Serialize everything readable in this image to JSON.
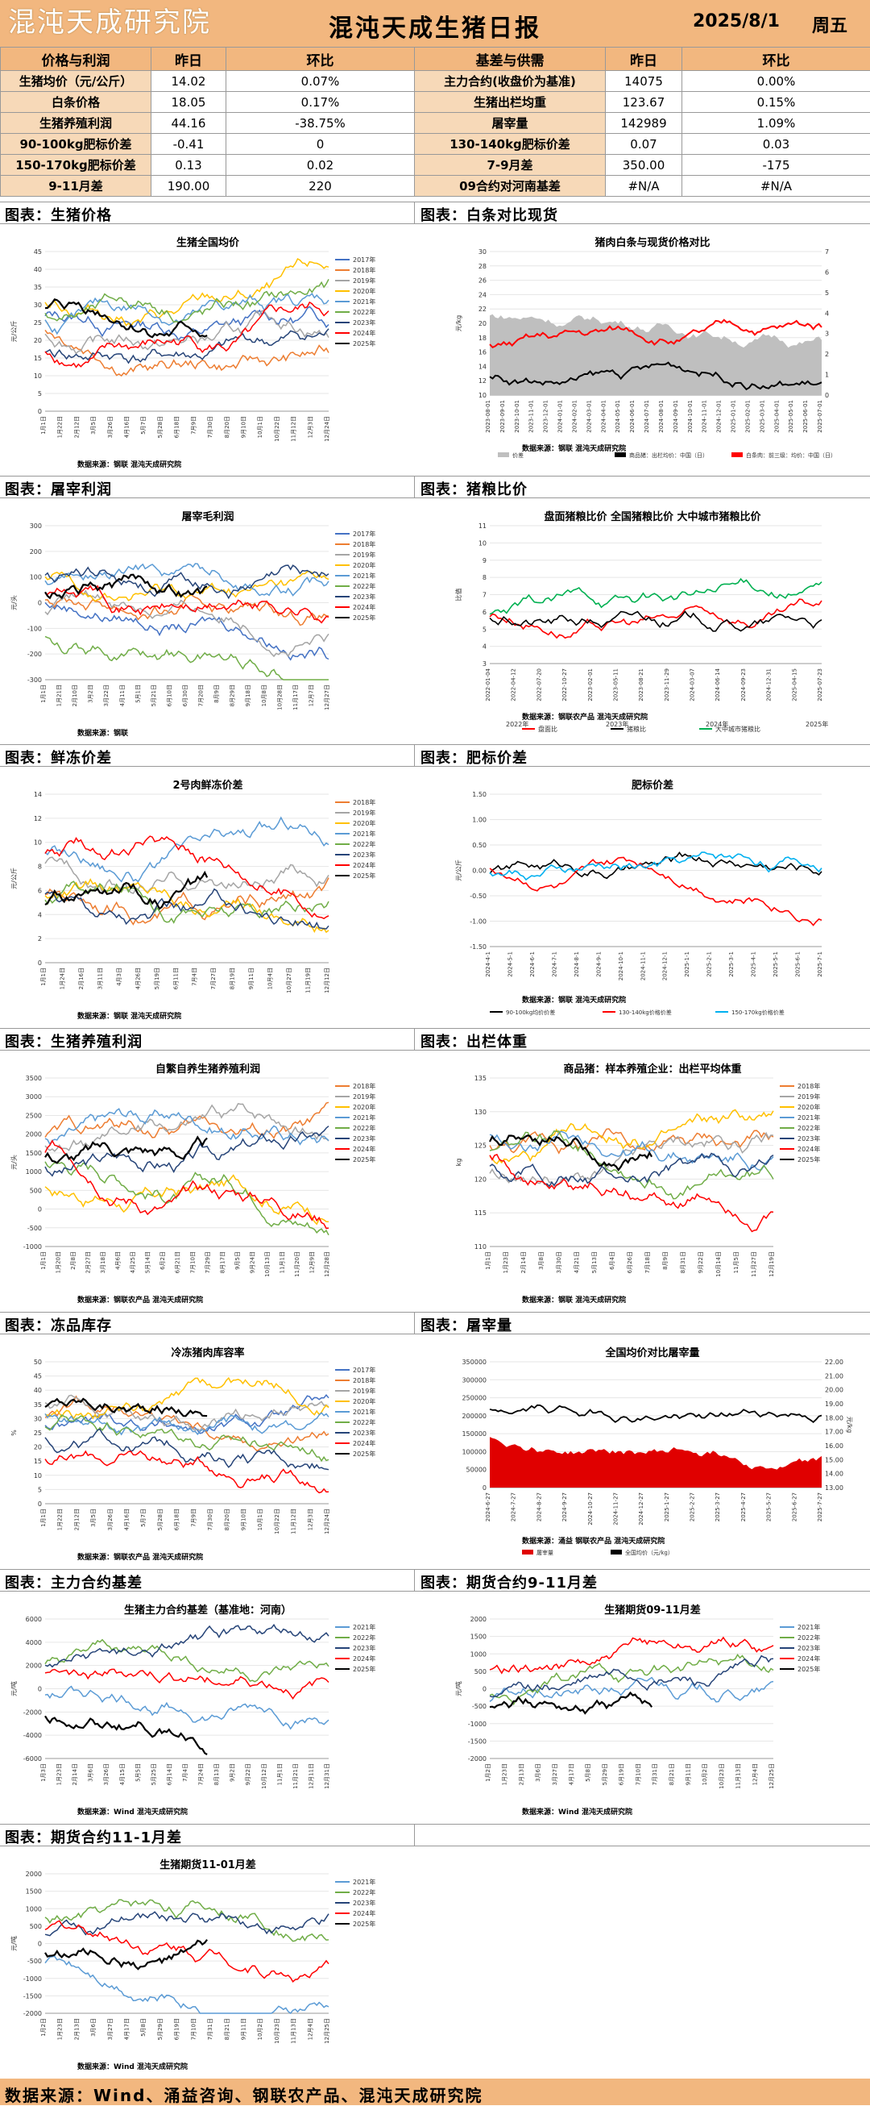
{
  "header": {
    "logo_text": "混沌天成研究院",
    "title": "混沌天成生猪日报",
    "date": "2025/8/1",
    "weekday": "周五"
  },
  "kpi_table": {
    "head": [
      "价格与利润",
      "昨日",
      "环比",
      "基差与供需",
      "昨日",
      "环比"
    ],
    "rows": [
      [
        "生猪均价（元/公斤）",
        "14.02",
        "0.07%",
        "主力合约(收盘价为基准)",
        "14075",
        "0.00%"
      ],
      [
        "白条价格",
        "18.05",
        "0.17%",
        "生猪出栏均重",
        "123.67",
        "0.15%"
      ],
      [
        "生猪养殖利润",
        "44.16",
        "-38.75%",
        "屠宰量",
        "142989",
        "1.09%"
      ],
      [
        "90-100kg肥标价差",
        "-0.41",
        "0",
        "130-140kg肥标价差",
        "0.07",
        "0.03"
      ],
      [
        "150-170kg肥标价差",
        "0.13",
        "0.02",
        "7-9月差",
        "350.00",
        "-175"
      ],
      [
        "9-11月差",
        "190.00",
        "220",
        "09合约对河南基差",
        "#N/A",
        "#N/A"
      ]
    ]
  },
  "sections": [
    {
      "left": "图表：生猪价格",
      "right": "图表：白条对比现货"
    },
    {
      "left": "图表：屠宰利润",
      "right": "图表：猪粮比价"
    },
    {
      "left": "图表：鲜冻价差",
      "right": "图表：肥标价差"
    },
    {
      "left": "图表：生猪养殖利润",
      "right": "图表：出栏体重"
    },
    {
      "left": "图表：冻品库存",
      "right": "图表：屠宰量"
    },
    {
      "left": "图表：主力合约基差",
      "right": "图表：期货合约9-11月差"
    },
    {
      "left": "图表：期货合约11-1月差",
      "right": ""
    }
  ],
  "footer": "数据来源：Wind、涌益咨询、钢联农产品、混沌天成研究院",
  "colors": {
    "header_bg": "#f2b77f",
    "label_bg": "#f7d9b8",
    "s2017": "#4472c4",
    "s2018": "#ed7d31",
    "s2019": "#a5a5a5",
    "s2020": "#ffc000",
    "s2021": "#5b9bd5",
    "s2022": "#70ad47",
    "s2023": "#264478",
    "s2024": "#ff0000",
    "s2025": "#000000"
  },
  "charts": {
    "c1": {
      "title": "生猪全国均价",
      "ylabel": "元/公斤",
      "yticks": [
        "45",
        "40",
        "35",
        "30",
        "25",
        "20",
        "15",
        "10",
        "5",
        "0"
      ],
      "xticks": [
        "1月1日",
        "1月22日",
        "2月12日",
        "3月5日",
        "3月26日",
        "4月16日",
        "5月7日",
        "5月28日",
        "6月18日",
        "7月9日",
        "7月30日",
        "8月20日",
        "9月10日",
        "10月1日",
        "10月22日",
        "11月12日",
        "12月3日",
        "12月24日"
      ],
      "legend": [
        "2017年",
        "2018年",
        "2019年",
        "2020年",
        "2021年",
        "2022年",
        "2023年",
        "2024年",
        "2025年"
      ],
      "source": "数据来源：钢联 混沌天成研究院"
    },
    "c2": {
      "title": "猪肉白条与现货价格对比",
      "ylabel": "元/kg",
      "yticks": [
        "30",
        "28",
        "26",
        "24",
        "22",
        "20",
        "18",
        "16",
        "14",
        "12",
        "10"
      ],
      "y2ticks": [
        "7",
        "6",
        "5",
        "4",
        "3",
        "2",
        "1",
        "0"
      ],
      "xticks": [
        "2023-08-01",
        "2023-09-01",
        "2023-10-01",
        "2023-11-01",
        "2023-12-01",
        "2024-01-01",
        "2024-02-01",
        "2024-03-01",
        "2024-04-01",
        "2024-05-01",
        "2024-06-01",
        "2024-07-01",
        "2024-08-01",
        "2024-09-01",
        "2024-10-01",
        "2024-11-01",
        "2024-12-01",
        "2025-01-01",
        "2025-02-01",
        "2025-03-01",
        "2025-04-01",
        "2025-05-01",
        "2025-06-01",
        "2025-07-01"
      ],
      "legend": [
        "价差",
        "商品猪：出栏均价：中国（日）",
        "白条肉：前三级：均价：中国（日）"
      ],
      "source": "数据来源：钢联 混沌天成研究院"
    },
    "c3": {
      "title": "屠宰毛利润",
      "ylabel": "元/头",
      "yticks": [
        "300",
        "200",
        "100",
        "0",
        "-100",
        "-200",
        "-300"
      ],
      "xticks": [
        "1月1日",
        "1月21日",
        "2月10日",
        "3月2日",
        "3月22日",
        "4月11日",
        "5月1日",
        "5月21日",
        "6月10日",
        "6月30日",
        "7月20日",
        "8月9日",
        "8月29日",
        "9月18日",
        "10月8日",
        "10月28日",
        "11月17日",
        "12月7日",
        "12月27日"
      ],
      "legend": [
        "2017年",
        "2018年",
        "2019年",
        "2020年",
        "2021年",
        "2022年",
        "2023年",
        "2024年",
        "2025年"
      ],
      "source": "数据来源：钢联"
    },
    "c4": {
      "title": "盘面猪粮比价 全国猪粮比价 大中城市猪粮比价",
      "ylabel": "比值",
      "yticks": [
        "11",
        "10",
        "9",
        "8",
        "7",
        "6",
        "5",
        "4",
        "3"
      ],
      "xticks": [
        "2022-01-04",
        "2022-04-12",
        "2022-07-20",
        "2022-10-27",
        "2023-02-01",
        "2023-05-11",
        "2023-08-21",
        "2023-11-29",
        "2024-03-07",
        "2024-06-14",
        "2024-09-23",
        "2024-12-31",
        "2025-04-15",
        "2025-07-23"
      ],
      "years": [
        "2022年",
        "2023年",
        "2024年",
        "2025年"
      ],
      "legend": [
        "盘面比",
        "猪粮比",
        "大中城市猪粮比"
      ],
      "source": "数据来源：钢联农产品 混沌天成研究院"
    },
    "c5": {
      "title": "2号肉鲜冻价差",
      "ylabel": "元/公斤",
      "yticks": [
        "14",
        "12",
        "10",
        "8",
        "6",
        "4",
        "2",
        "0"
      ],
      "xticks": [
        "1月1日",
        "1月24日",
        "2月16日",
        "3月11日",
        "4月3日",
        "4月26日",
        "5月19日",
        "6月11日",
        "7月4日",
        "7月27日",
        "8月19日",
        "9月11日",
        "10月4日",
        "10月27日",
        "11月19日",
        "12月12日"
      ],
      "legend": [
        "2018年",
        "2019年",
        "2020年",
        "2021年",
        "2022年",
        "2023年",
        "2024年",
        "2025年"
      ],
      "source": "数据来源：钢联 混沌天成研究院"
    },
    "c6": {
      "title": "肥标价差",
      "ylabel": "元/公斤",
      "yticks": [
        "1.50",
        "1.00",
        "0.50",
        "0.00",
        "-0.50",
        "-1.00",
        "-1.50"
      ],
      "xticks": [
        "2024-4-1",
        "2024-5-1",
        "2024-6-1",
        "2024-7-1",
        "2024-8-1",
        "2024-9-1",
        "2024-10-1",
        "2024-11-1",
        "2024-12-1",
        "2025-1-1",
        "2025-2-1",
        "2025-3-1",
        "2025-4-1",
        "2025-5-1",
        "2025-6-1",
        "2025-7-1"
      ],
      "legend": [
        "90-100kg均价价差",
        "130-140kg价格价差",
        "150-170kg价格价差"
      ],
      "source": "数据来源：钢联 混沌天成研究院"
    },
    "c7": {
      "title": "自繁自养生猪养殖利润",
      "ylabel": "元/头",
      "yticks": [
        "3500",
        "3000",
        "2500",
        "2000",
        "1500",
        "1000",
        "500",
        "0",
        "-500",
        "-1000"
      ],
      "xticks": [
        "1月1日",
        "1月20日",
        "2月8日",
        "2月27日",
        "3月18日",
        "4月6日",
        "4月25日",
        "5月14日",
        "6月2日",
        "6月21日",
        "7月10日",
        "7月29日",
        "8月17日",
        "9月5日",
        "9月24日",
        "10月13日",
        "11月1日",
        "11月20日",
        "12月9日",
        "12月28日"
      ],
      "legend": [
        "2018年",
        "2019年",
        "2020年",
        "2021年",
        "2022年",
        "2023年",
        "2024年",
        "2025年"
      ],
      "source": "数据来源：钢联农产品 混沌天成研究院"
    },
    "c8": {
      "title": "商品猪：样本养殖企业：出栏平均体重",
      "ylabel": "kg",
      "yticks": [
        "135",
        "130",
        "125",
        "120",
        "115",
        "110"
      ],
      "xticks": [
        "1月1日",
        "1月23日",
        "2月14日",
        "3月8日",
        "3月30日",
        "4月21日",
        "5月13日",
        "6月4日",
        "6月26日",
        "7月18日",
        "8月9日",
        "8月31日",
        "9月22日",
        "10月14日",
        "11月5日",
        "11月27日",
        "12月19日"
      ],
      "legend": [
        "2018年",
        "2019年",
        "2020年",
        "2021年",
        "2022年",
        "2023年",
        "2024年",
        "2025年"
      ],
      "source": "数据来源：钢联 混沌天成研究院"
    },
    "c9": {
      "title": "冷冻猪肉库容率",
      "ylabel": "%",
      "yticks": [
        "50",
        "45",
        "40",
        "35",
        "30",
        "25",
        "20",
        "15",
        "10",
        "5",
        "0"
      ],
      "xticks": [
        "1月1日",
        "1月22日",
        "2月12日",
        "3月5日",
        "3月26日",
        "4月16日",
        "5月7日",
        "5月28日",
        "6月18日",
        "7月9日",
        "7月30日",
        "8月20日",
        "9月10日",
        "10月1日",
        "10月22日",
        "11月12日",
        "12月3日",
        "12月24日"
      ],
      "legend": [
        "2017年",
        "2018年",
        "2019年",
        "2020年",
        "2021年",
        "2022年",
        "2023年",
        "2024年",
        "2025年"
      ],
      "source": "数据来源：钢联农产品 混沌天成研究院"
    },
    "c10": {
      "title": "全国均价对比屠宰量",
      "ylabel_right": "元/kg",
      "yticks": [
        "350000",
        "300000",
        "250000",
        "200000",
        "150000",
        "100000",
        "50000",
        "0"
      ],
      "y2ticks": [
        "22.00",
        "21.00",
        "20.00",
        "19.00",
        "18.00",
        "17.00",
        "16.00",
        "15.00",
        "14.00",
        "13.00"
      ],
      "xticks": [
        "2024-6-27",
        "2024-7-27",
        "2024-8-27",
        "2024-9-27",
        "2024-10-27",
        "2024-11-27",
        "2024-12-27",
        "2025-1-27",
        "2025-2-27",
        "2025-3-27",
        "2025-4-27",
        "2025-5-27",
        "2025-6-27",
        "2025-7-27"
      ],
      "legend": [
        "屠宰量",
        "全国均价（元/kg）"
      ],
      "source": "数据来源：涌益 钢联农产品 混沌天成研究院"
    },
    "c11": {
      "title": "生猪主力合约基差（基准地：河南）",
      "ylabel": "元/吨",
      "yticks": [
        "6000",
        "4000",
        "2000",
        "0",
        "-2000",
        "-4000",
        "-6000"
      ],
      "xticks": [
        "1月3日",
        "1月23日",
        "2月14日",
        "3月6日",
        "3月26日",
        "4月15日",
        "5月5日",
        "5月25日",
        "6月14日",
        "7月4日",
        "7月24日",
        "8月13日",
        "9月2日",
        "9月22日",
        "10月12日",
        "11月1日",
        "11月21日",
        "12月11日",
        "12月31日"
      ],
      "legend": [
        "2021年",
        "2022年",
        "2023年",
        "2024年",
        "2025年"
      ],
      "source": "数据来源：Wind 混沌天成研究院"
    },
    "c12": {
      "title": "生猪期货09-11月差",
      "ylabel": "元/吨",
      "yticks": [
        "2000",
        "1500",
        "1000",
        "500",
        "0",
        "-500",
        "-1000",
        "-1500",
        "-2000"
      ],
      "xticks": [
        "1月2日",
        "1月23日",
        "2月13日",
        "3月6日",
        "3月27日",
        "4月17日",
        "5月8日",
        "5月29日",
        "6月19日",
        "7月10日",
        "7月31日",
        "8月21日",
        "9月11日",
        "10月2日",
        "10月23日",
        "11月13日",
        "12月4日",
        "12月25日"
      ],
      "legend": [
        "2021年",
        "2022年",
        "2023年",
        "2024年",
        "2025年"
      ],
      "source": "数据来源：Wind 混沌天成研究院"
    },
    "c13": {
      "title": "生猪期货11-01月差",
      "ylabel": "元/吨",
      "yticks": [
        "2000",
        "1500",
        "1000",
        "500",
        "0",
        "-500",
        "-1000",
        "-1500",
        "-2000"
      ],
      "xticks": [
        "1月2日",
        "1月23日",
        "2月13日",
        "3月6日",
        "3月27日",
        "4月17日",
        "5月8日",
        "5月29日",
        "6月19日",
        "7月10日",
        "7月31日",
        "8月21日",
        "9月11日",
        "10月2日",
        "10月23日",
        "11月13日",
        "12月4日",
        "12月25日"
      ],
      "legend": [
        "2021年",
        "2022年",
        "2023年",
        "2024年",
        "2025年"
      ],
      "source": "数据来源：Wind 混沌天成研究院"
    }
  }
}
